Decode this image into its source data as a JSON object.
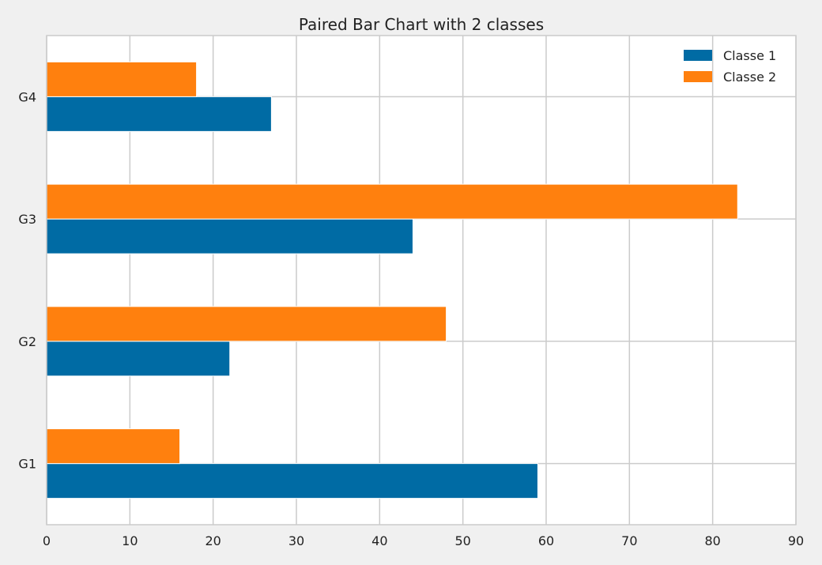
{
  "chart_data": {
    "type": "bar",
    "orientation": "horizontal",
    "title": "Paired Bar Chart with 2 classes",
    "categories": [
      "G1",
      "G2",
      "G3",
      "G4"
    ],
    "series": [
      {
        "name": "Classe 1",
        "color": "#006ba4",
        "values": [
          59,
          22,
          44,
          27
        ]
      },
      {
        "name": "Classe 2",
        "color": "#ff800e",
        "values": [
          16,
          48,
          83,
          18
        ]
      }
    ],
    "xlim": [
      0,
      90
    ],
    "x_ticks": [
      0,
      10,
      20,
      30,
      40,
      50,
      60,
      70,
      80,
      90
    ],
    "xlabel": "",
    "ylabel": "",
    "grid": true,
    "legend_position": "top-right"
  },
  "colors": {
    "background": "#f0f0f0",
    "plot_background": "#ffffff",
    "grid": "#cbcbcb"
  }
}
